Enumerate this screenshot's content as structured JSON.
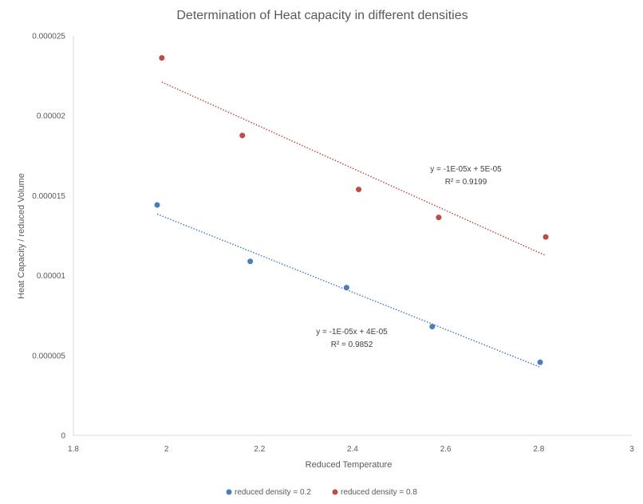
{
  "chart_data": {
    "type": "scatter",
    "title": "Determination of Heat capacity in different densities",
    "xlabel": "Reduced Temperature",
    "ylabel": "Heat Capacity / reduced Volume",
    "xlim": [
      1.8,
      3
    ],
    "ylim": [
      0,
      2.5e-05
    ],
    "grid": false,
    "legend_position": "bottom",
    "x_ticks": [
      1.8,
      2,
      2.2,
      2.4,
      2.6,
      2.8,
      3
    ],
    "x_tick_labels": [
      "1.8",
      "2",
      "2.2",
      "2.4",
      "2.6",
      "2.8",
      "3"
    ],
    "y_ticks": [
      0,
      5e-06,
      1e-05,
      1.5e-05,
      2e-05,
      2.5e-05
    ],
    "y_tick_labels": [
      "0",
      "0.000005",
      "0.00001",
      "0.000015",
      "0.00002",
      "0.000025"
    ],
    "series": [
      {
        "name": "reduced density = 0.2",
        "color": "#4a7ebb",
        "x": [
          1.98,
          2.18,
          2.387,
          2.571,
          2.803
        ],
        "y": [
          1.442e-05,
          1.089e-05,
          9.25e-06,
          6.81e-06,
          4.58e-06
        ],
        "trendline": {
          "x": [
            1.98,
            2.803
          ],
          "y": [
            1.385e-05,
            4.27e-06
          ],
          "equation": "y = -1E-05x + 4E-05",
          "r_squared": "R² = 0.9852"
        }
      },
      {
        "name": "reduced density = 0.8",
        "color": "#be4b48",
        "x": [
          1.99,
          2.163,
          2.413,
          2.585,
          2.815
        ],
        "y": [
          2.362e-05,
          1.877e-05,
          1.539e-05,
          1.364e-05,
          1.242e-05
        ],
        "trendline": {
          "x": [
            1.99,
            2.815
          ],
          "y": [
            2.211e-05,
            1.125e-05
          ],
          "equation": "y = -1E-05x + 5E-05",
          "r_squared": "R² = 0.9199"
        }
      }
    ]
  }
}
